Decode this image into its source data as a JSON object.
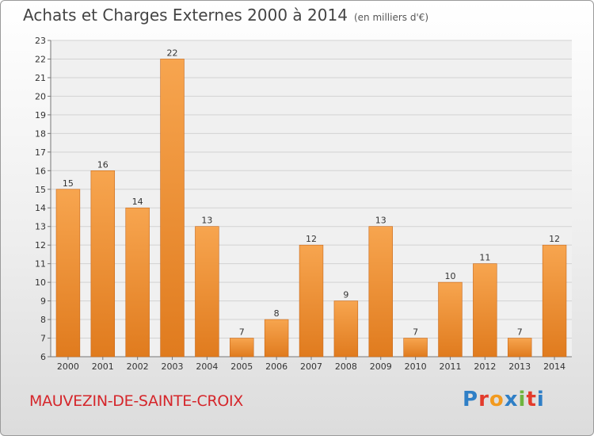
{
  "title": "Achats et Charges Externes 2000 à 2014",
  "title_unit": "(en milliers d'€)",
  "commune": "MAUVEZIN-DE-SAINTE-CROIX",
  "logo": {
    "letters": [
      "P",
      "r",
      "o",
      "x",
      "i",
      "t",
      "i"
    ],
    "colors": [
      "#2f7fc6",
      "#e33b2c",
      "#f29a1f",
      "#2f7fc6",
      "#6fb43f",
      "#e33b2c",
      "#2f7fc6"
    ]
  },
  "colors": {
    "bar_top": "#f7a54f",
    "bar_bottom": "#e07b1e",
    "commune": "#d5262b"
  },
  "chart_data": {
    "type": "bar",
    "categories": [
      "2000",
      "2001",
      "2002",
      "2003",
      "2004",
      "2005",
      "2006",
      "2007",
      "2008",
      "2009",
      "2010",
      "2011",
      "2012",
      "2013",
      "2014"
    ],
    "values": [
      15,
      16,
      14,
      22,
      13,
      7,
      8,
      12,
      9,
      13,
      7,
      10,
      11,
      7,
      12
    ],
    "ylim": [
      6,
      23
    ],
    "yticks": [
      6,
      7,
      8,
      9,
      10,
      11,
      12,
      13,
      14,
      15,
      16,
      17,
      18,
      19,
      20,
      21,
      22,
      23
    ],
    "grid": true,
    "legend": "none"
  }
}
